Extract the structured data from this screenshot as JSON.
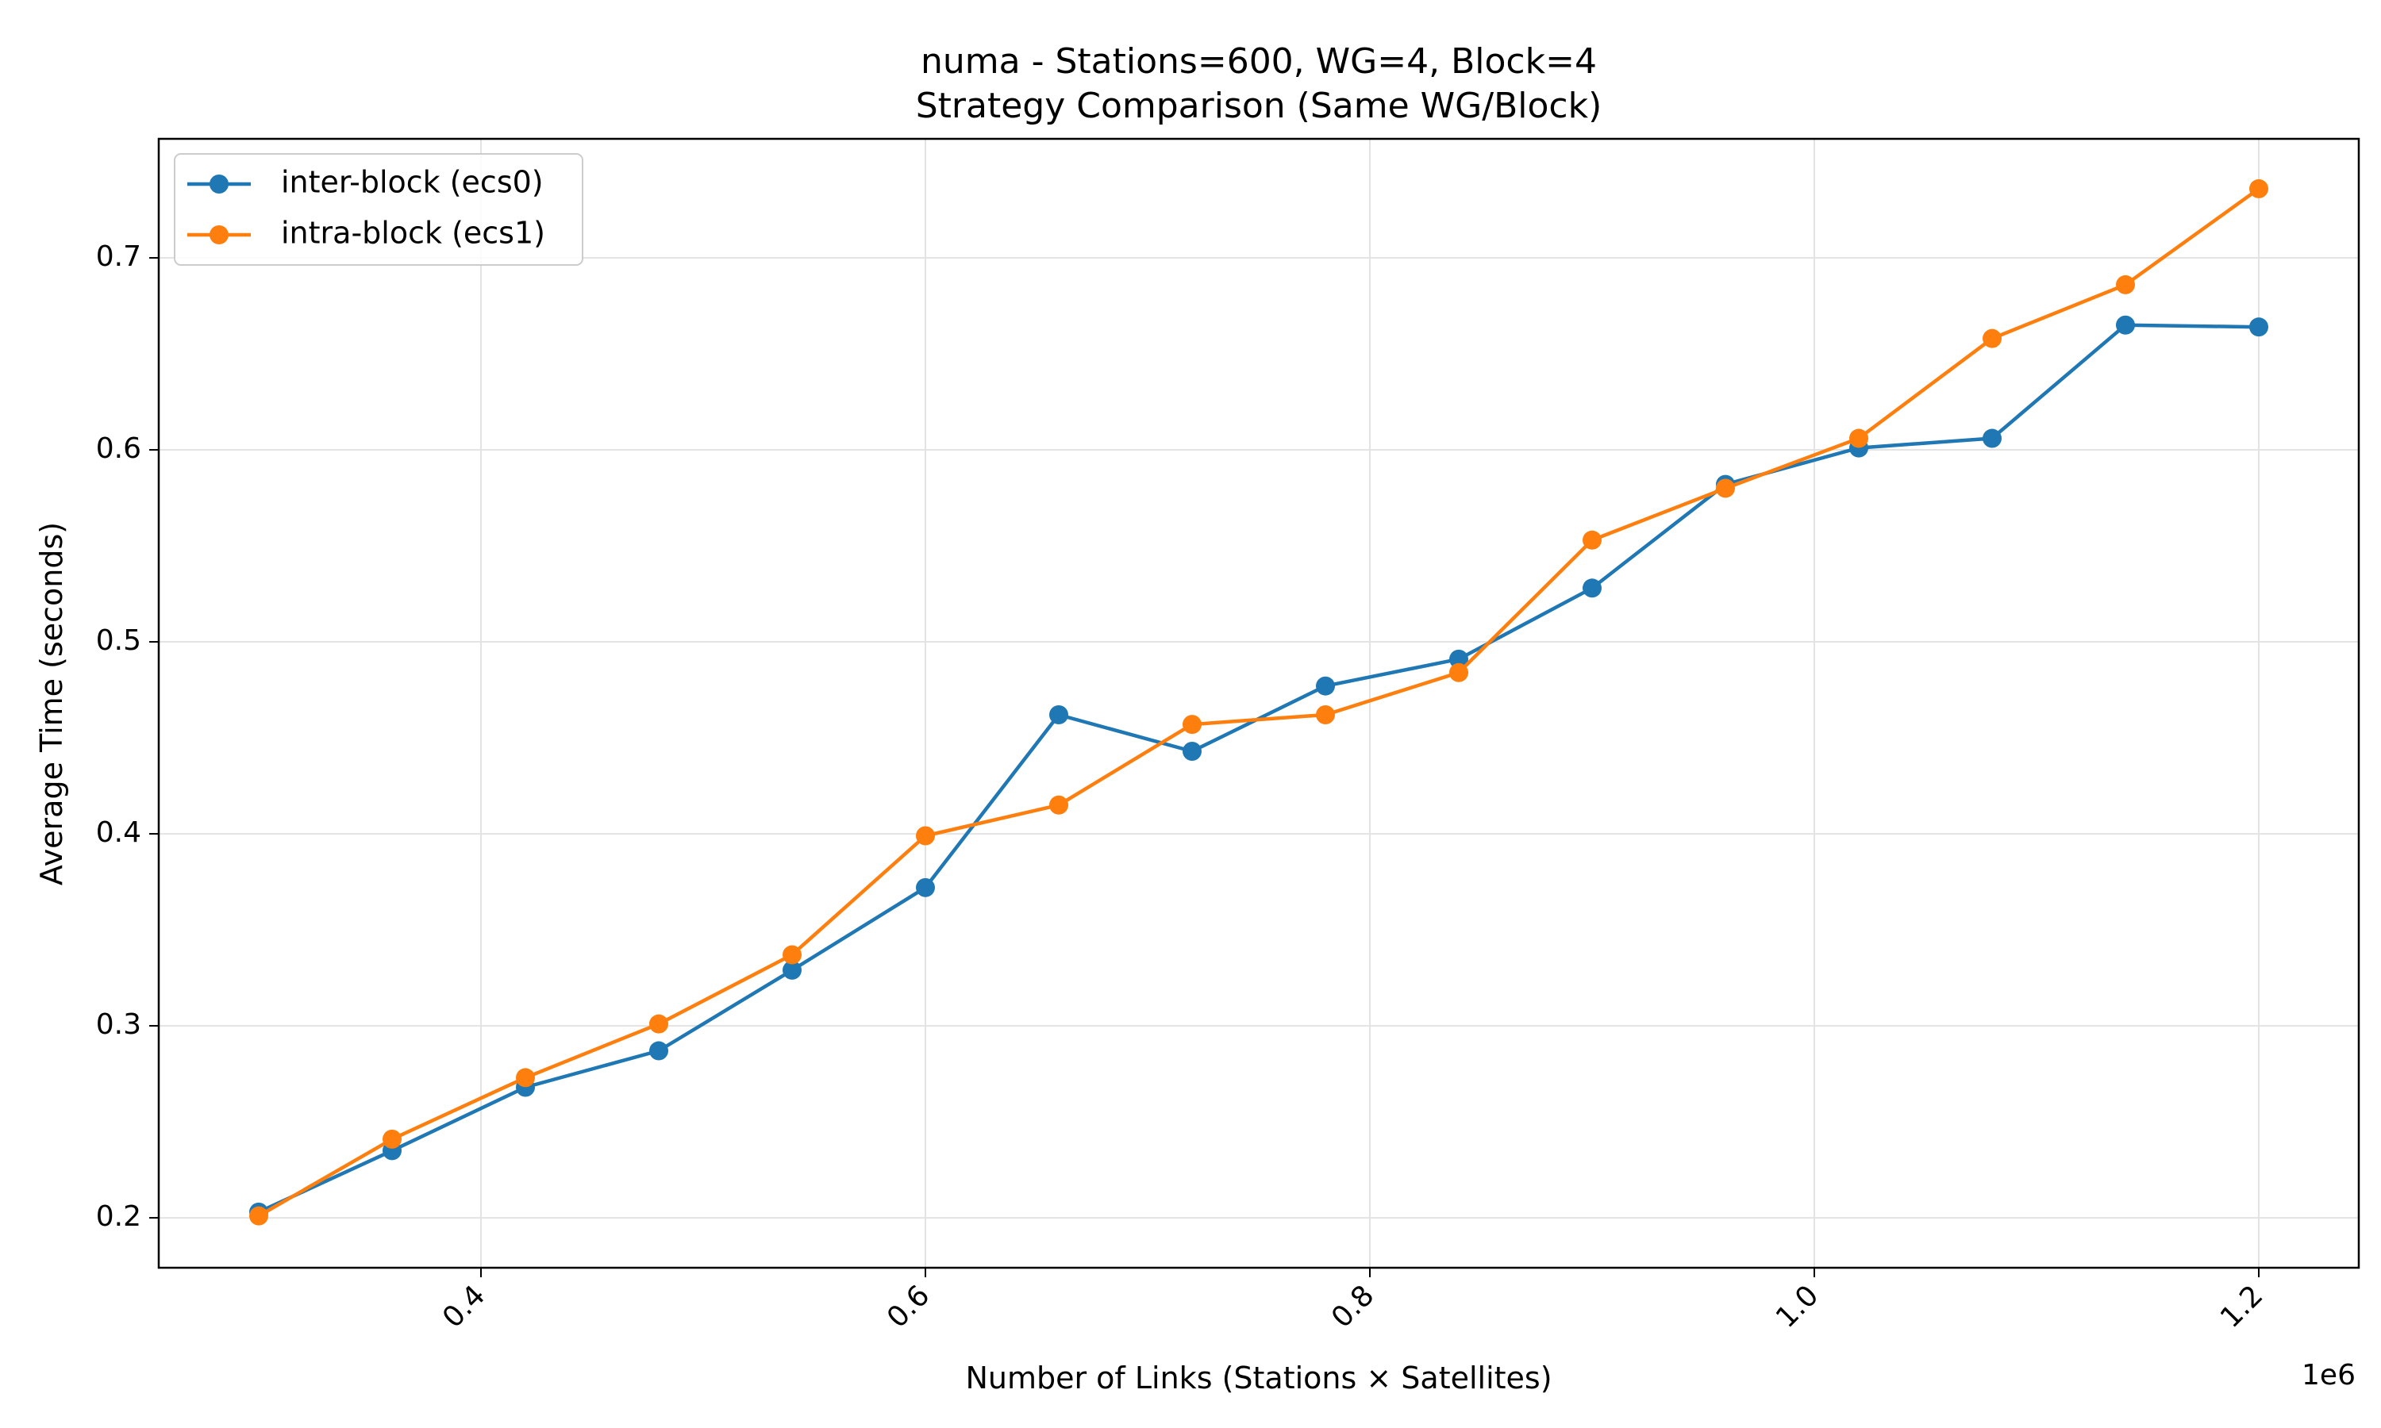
{
  "chart_data": {
    "type": "line",
    "title": "numa - Stations=600, WG=4, Block=4",
    "subtitle": "Strategy Comparison (Same WG/Block)",
    "xlabel": "Number of Links (Stations × Satellites)",
    "ylabel": "Average Time (seconds)",
    "x_offset_label": "1e6",
    "xlim": [
      0.255,
      1.245
    ],
    "ylim": [
      0.174,
      0.762
    ],
    "x_ticks": [
      0.4,
      0.6,
      0.8,
      1.0,
      1.2
    ],
    "x_tick_labels": [
      "0.4",
      "0.6",
      "0.8",
      "1.0",
      "1.2"
    ],
    "y_ticks": [
      0.2,
      0.3,
      0.4,
      0.5,
      0.6,
      0.7
    ],
    "y_tick_labels": [
      "0.2",
      "0.3",
      "0.4",
      "0.5",
      "0.6",
      "0.7"
    ],
    "grid": true,
    "legend_position": "top-left",
    "x": [
      0.3,
      0.36,
      0.42,
      0.48,
      0.54,
      0.6,
      0.66,
      0.72,
      0.78,
      0.84,
      0.9,
      0.96,
      1.02,
      1.08,
      1.14,
      1.2
    ],
    "series": [
      {
        "name": "inter-block (ecs0)",
        "color": "#1f77b4",
        "values": [
          0.203,
          0.235,
          0.268,
          0.287,
          0.329,
          0.372,
          0.462,
          0.443,
          0.477,
          0.491,
          0.528,
          0.582,
          0.601,
          0.606,
          0.665,
          0.664
        ]
      },
      {
        "name": "intra-block (ecs1)",
        "color": "#ff7f0e",
        "values": [
          0.201,
          0.241,
          0.273,
          0.301,
          0.337,
          0.399,
          0.415,
          0.457,
          0.462,
          0.484,
          0.553,
          0.58,
          0.606,
          0.658,
          0.686,
          0.736
        ]
      }
    ]
  }
}
